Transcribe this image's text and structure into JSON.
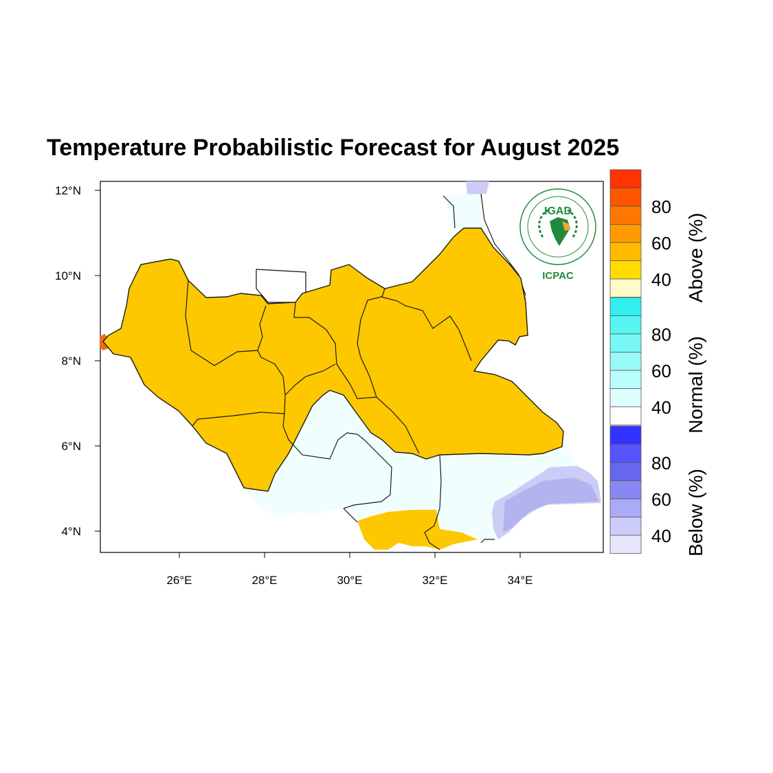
{
  "title": "Temperature Probabilistic Forecast for August 2025",
  "axes": {
    "lon_ticks": [
      "26°E",
      "28°E",
      "30°E",
      "32°E",
      "34°E"
    ],
    "lat_ticks": [
      "12°N",
      "10°N",
      "8°N",
      "6°N",
      "4°N"
    ]
  },
  "colorbar": {
    "above": {
      "title": "Above (%)",
      "labels": [
        "80",
        "60",
        "40"
      ],
      "colors": [
        "#ff3300",
        "#ff5500",
        "#ff7700",
        "#ff9900",
        "#ffbb00",
        "#ffdd00",
        "#fffbc8"
      ]
    },
    "normal": {
      "title": "Normal (%)",
      "labels": [
        "80",
        "60",
        "40"
      ],
      "colors": [
        "#33eeee",
        "#55f5f2",
        "#77f8f6",
        "#99fbf9",
        "#bbfdfb",
        "#ddfffe",
        "#ffffff"
      ]
    },
    "below": {
      "title": "Below (%)",
      "labels": [
        "80",
        "60",
        "40"
      ],
      "colors": [
        "#3333ff",
        "#5555ff",
        "#6666ee",
        "#8888f2",
        "#aaaaf6",
        "#ccccfa",
        "#e6e6fc"
      ]
    }
  },
  "logo": {
    "name": "IGAD",
    "subtitle": "ICPAC"
  },
  "map_colors": {
    "above_45": "#fdc800",
    "above_50": "#ffb300",
    "above_60": "#f07d20",
    "above_70": "#f16b18",
    "normal_40": "#f0fffe",
    "below_40": "#ccccf6",
    "below_45": "#b3b3f0",
    "outside": "#ffffff",
    "boundary": "#1a1a1a"
  }
}
